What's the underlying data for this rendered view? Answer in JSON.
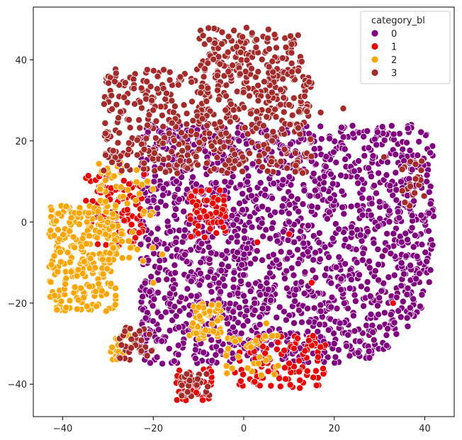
{
  "chart_data": {
    "type": "scatter",
    "title": "",
    "xlabel": "",
    "ylabel": "",
    "xlim": [
      -46.5,
      46.5
    ],
    "ylim": [
      -48,
      53
    ],
    "x_ticks": [
      -40,
      -20,
      0,
      20,
      40
    ],
    "y_ticks": [
      -40,
      -20,
      0,
      20,
      40
    ],
    "grid": false,
    "legend": {
      "title": "category_bl",
      "placement": "top-right",
      "entries": [
        "0",
        "1",
        "2",
        "3"
      ]
    },
    "series": [
      {
        "name": "0",
        "color": "#800080",
        "clusters": [
          {
            "x": [
              -23,
              42
            ],
            "y": [
              -35,
              24
            ],
            "n": 1800
          }
        ],
        "points": [
          [
            10,
            0
          ],
          [
            25,
            -10
          ],
          [
            -5,
            -12
          ],
          [
            15,
            15
          ],
          [
            30,
            5
          ],
          [
            0,
            -30
          ],
          [
            20,
            -30
          ],
          [
            -15,
            -5
          ]
        ]
      },
      {
        "name": "1",
        "color": "#ee0000",
        "clusters": [
          {
            "x": [
              -35,
              -22
            ],
            "y": [
              -6,
              12
            ],
            "n": 110
          },
          {
            "x": [
              -12,
              -4
            ],
            "y": [
              -4,
              8
            ],
            "n": 70
          },
          {
            "x": [
              -2,
              18
            ],
            "y": [
              -41,
              -28
            ],
            "n": 110
          },
          {
            "x": [
              -15,
              -7
            ],
            "y": [
              -44,
              -36
            ],
            "n": 45
          }
        ],
        "points": [
          [
            3,
            -5
          ],
          [
            15,
            -15
          ],
          [
            -5,
            0
          ],
          [
            10,
            -3
          ],
          [
            33,
            -20
          ]
        ]
      },
      {
        "name": "2",
        "color": "#ffa500",
        "clusters": [
          {
            "x": [
              -43,
              -28
            ],
            "y": [
              -22,
              4
            ],
            "n": 260
          },
          {
            "x": [
              -32,
              -20
            ],
            "y": [
              -10,
              15
            ],
            "n": 70
          },
          {
            "x": [
              -12,
              -5
            ],
            "y": [
              -29,
              -20
            ],
            "n": 55
          },
          {
            "x": [
              -30,
              -25
            ],
            "y": [
              -34,
              -27
            ],
            "n": 25
          },
          {
            "x": [
              -4,
              8
            ],
            "y": [
              -38,
              -28
            ],
            "n": 35
          }
        ],
        "points": [
          [
            -20,
            -15
          ],
          [
            5,
            -25
          ],
          [
            -18,
            -8
          ]
        ]
      },
      {
        "name": "3",
        "color": "#a52a2a",
        "clusters": [
          {
            "x": [
              -31,
              15
            ],
            "y": [
              12,
              38
            ],
            "n": 520
          },
          {
            "x": [
              -10,
              13
            ],
            "y": [
              36,
              48
            ],
            "n": 140
          },
          {
            "x": [
              -28,
              -20
            ],
            "y": [
              -34,
              -26
            ],
            "n": 35
          },
          {
            "x": [
              -14,
              -7
            ],
            "y": [
              -43,
              -37
            ],
            "n": 25
          },
          {
            "x": [
              35,
              40
            ],
            "y": [
              3,
              16
            ],
            "n": 22
          }
        ],
        "points": [
          [
            17,
            27
          ],
          [
            22,
            28
          ],
          [
            31,
            16
          ]
        ]
      }
    ]
  }
}
